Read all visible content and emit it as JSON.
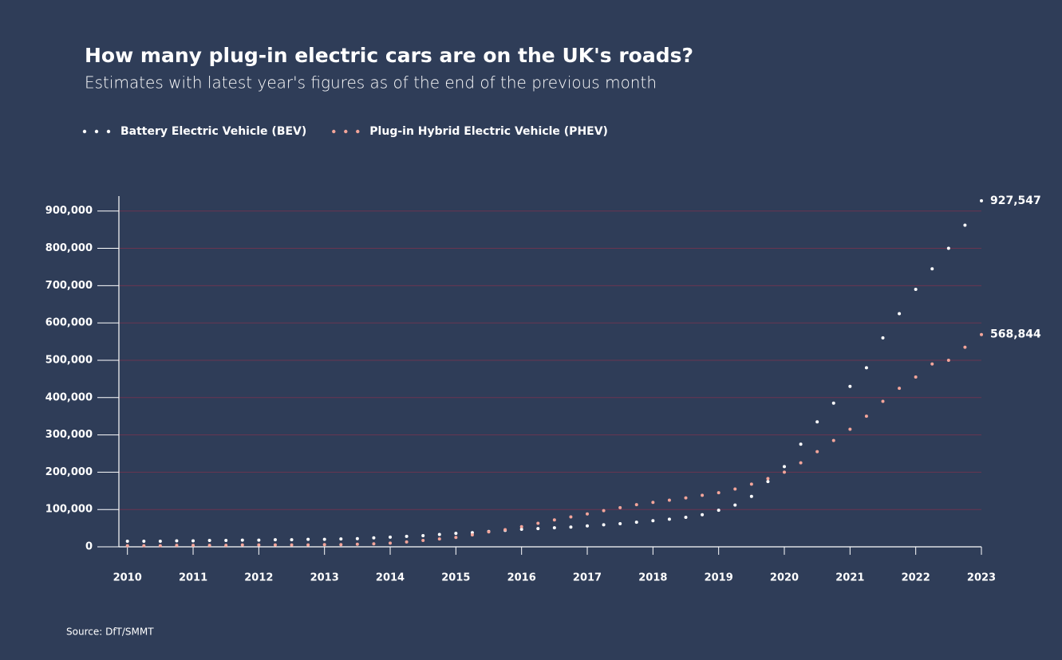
{
  "chart_data": {
    "type": "dotted-line",
    "title": "How many plug-in electric cars are on the UK's roads?",
    "subtitle": "Estimates with latest year's figures as of the end of the previous month",
    "source": "Source: DfT/SMMT",
    "x": [
      2010,
      2010.25,
      2010.5,
      2010.75,
      2011,
      2011.25,
      2011.5,
      2011.75,
      2012,
      2012.25,
      2012.5,
      2012.75,
      2013,
      2013.25,
      2013.5,
      2013.75,
      2014,
      2014.25,
      2014.5,
      2014.75,
      2015,
      2015.25,
      2015.5,
      2015.75,
      2016,
      2016.25,
      2016.5,
      2016.75,
      2017,
      2017.25,
      2017.5,
      2017.75,
      2018,
      2018.25,
      2018.5,
      2018.75,
      2019,
      2019.25,
      2019.5,
      2019.75,
      2020,
      2020.25,
      2020.5,
      2020.75,
      2021,
      2021.25,
      2021.5,
      2021.75,
      2022,
      2022.25,
      2022.5,
      2022.75,
      2023
    ],
    "series": [
      {
        "name": "Battery Electric Vehicle (BEV)",
        "color": "#ffffff",
        "values": [
          15000,
          15000,
          15000,
          16000,
          16000,
          17000,
          17000,
          18000,
          18000,
          19000,
          19000,
          20000,
          20000,
          21000,
          22000,
          24000,
          26000,
          28000,
          30000,
          33000,
          36000,
          38000,
          41000,
          44000,
          47000,
          49000,
          51000,
          53000,
          56000,
          59000,
          62000,
          66000,
          70000,
          74000,
          79000,
          86000,
          98000,
          112000,
          135000,
          175000,
          215000,
          275000,
          335000,
          385000,
          430000,
          480000,
          560000,
          625000,
          690000,
          745000,
          800000,
          862000,
          927547
        ],
        "value_labels": [
          null,
          null,
          null,
          null,
          null,
          null,
          null,
          null,
          null,
          null,
          null,
          null,
          null,
          null,
          null,
          null,
          null,
          null,
          null,
          null,
          null,
          null,
          null,
          null,
          null,
          null,
          null,
          null,
          null,
          null,
          null,
          null,
          null,
          null,
          null,
          null,
          null,
          null,
          null,
          null,
          null,
          null,
          null,
          null,
          null,
          null,
          null,
          null,
          null,
          null,
          null,
          null,
          "927,547"
        ]
      },
      {
        "name": "Plug-in Hybrid Electric Vehicle (PHEV)",
        "color": "#f4a59a",
        "values": [
          3000,
          3000,
          3000,
          4000,
          4000,
          4000,
          4000,
          5000,
          5000,
          5000,
          5000,
          5000,
          6000,
          6000,
          7000,
          8000,
          10000,
          13000,
          17000,
          21000,
          25000,
          32000,
          40000,
          46000,
          54000,
          63000,
          72000,
          80000,
          88000,
          97000,
          105000,
          113000,
          119000,
          125000,
          131000,
          138000,
          145000,
          155000,
          168000,
          183000,
          200000,
          225000,
          255000,
          285000,
          315000,
          350000,
          390000,
          425000,
          455000,
          490000,
          500000,
          535000,
          568844
        ],
        "value_labels": [
          null,
          null,
          null,
          null,
          null,
          null,
          null,
          null,
          null,
          null,
          null,
          null,
          null,
          null,
          null,
          null,
          null,
          null,
          null,
          null,
          null,
          null,
          null,
          null,
          null,
          null,
          null,
          null,
          null,
          null,
          null,
          null,
          null,
          null,
          null,
          null,
          null,
          null,
          null,
          null,
          null,
          null,
          null,
          null,
          null,
          null,
          null,
          null,
          null,
          null,
          null,
          null,
          "568,844"
        ]
      }
    ],
    "xlim": [
      2009.87,
      2023
    ],
    "xticks": [
      2010,
      2011,
      2012,
      2013,
      2014,
      2015,
      2016,
      2017,
      2018,
      2019,
      2020,
      2021,
      2022,
      2023
    ],
    "ylim": [
      0,
      940000
    ],
    "yticks": [
      0,
      {
        "value": 100000,
        "label": "100,000"
      },
      {
        "value": 200000,
        "label": "200,000"
      },
      {
        "value": 300000,
        "label": "300,000"
      },
      {
        "value": 400000,
        "label": "400,000"
      },
      {
        "value": 500000,
        "label": "500,000"
      },
      {
        "value": 600000,
        "label": "600,000"
      },
      {
        "value": 700000,
        "label": "700,000"
      },
      {
        "value": 800000,
        "label": "800,000"
      },
      {
        "value": 900000,
        "label": "900,000"
      }
    ],
    "grid": true
  }
}
